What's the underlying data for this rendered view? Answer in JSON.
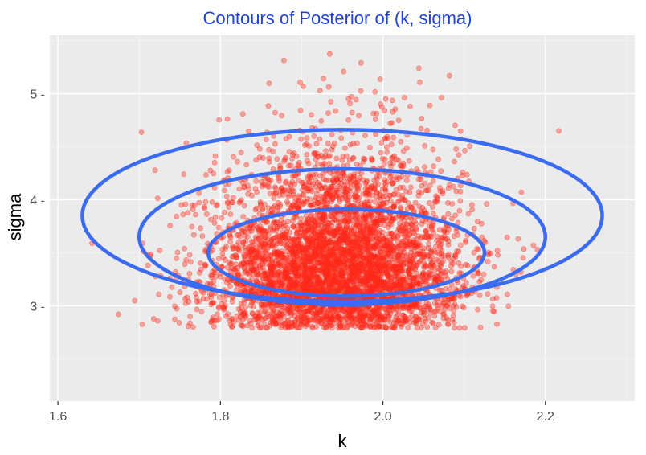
{
  "chart_data": {
    "type": "scatter",
    "title": "Contours of Posterior of (k, sigma)",
    "xlabel": "k",
    "ylabel": "sigma",
    "xlim": [
      1.59,
      2.31
    ],
    "ylim": [
      2.1,
      5.55
    ],
    "x_ticks": [
      1.6,
      1.8,
      2.0,
      2.2
    ],
    "x_tick_labels": [
      "1.6",
      "1.8",
      "2.0",
      "2.2"
    ],
    "y_ticks": [
      3,
      4,
      5
    ],
    "y_tick_labels": [
      "3 -",
      "4 -",
      "5 -"
    ],
    "grid": true,
    "legend": "none",
    "colors": {
      "title": "#1f3fe0",
      "points": "#ff2a1a",
      "contours": "#3b6bf0",
      "panel": "#ebebeb",
      "grid_major": "#ffffff",
      "grid_minor": "#f5f5f5"
    },
    "scatter": {
      "n_points": 5000,
      "center": [
        1.945,
        3.45
      ],
      "sd": [
        0.075,
        0.42
      ],
      "note_approx": "posterior draws, bivariate approximately normal, right-skewed in sigma"
    },
    "contours": [
      {
        "cx": 1.955,
        "cy": 3.5,
        "rx": 0.17,
        "ry": 0.82
      },
      {
        "cx": 1.95,
        "cy": 3.65,
        "rx": 0.25,
        "ry": 1.28
      },
      {
        "cx": 1.95,
        "cy": 3.85,
        "rx": 0.32,
        "ry": 1.62
      }
    ]
  }
}
